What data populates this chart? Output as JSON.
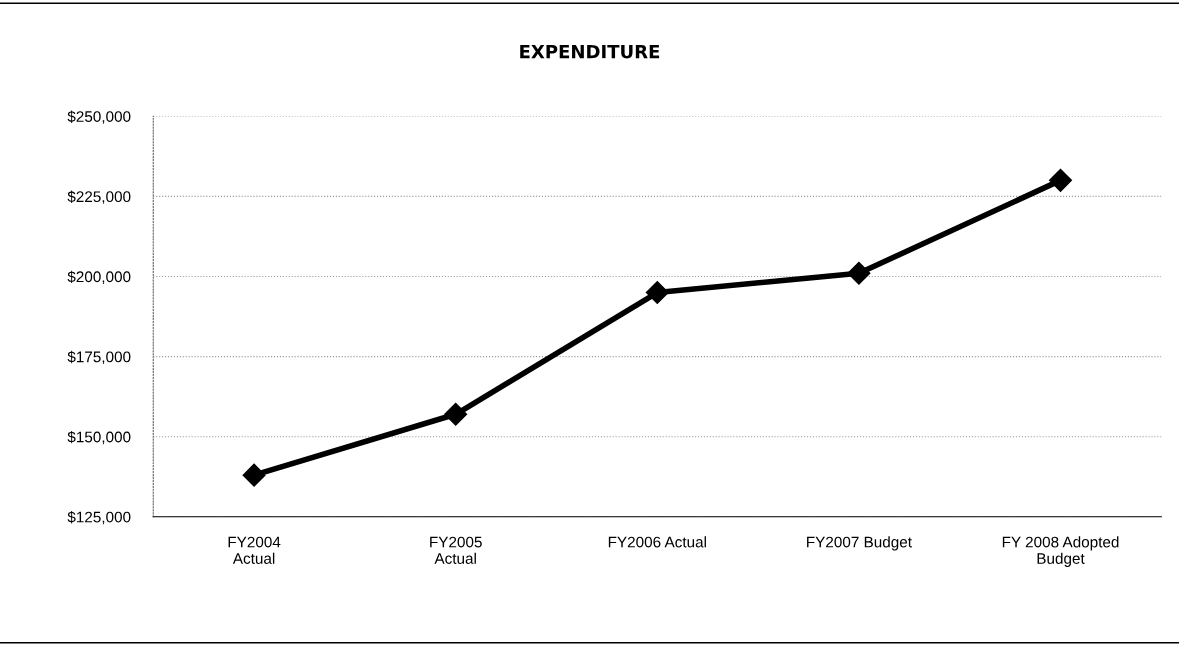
{
  "chart_data": {
    "type": "line",
    "title": "EXPENDITURE",
    "categories": [
      "FY2004\nActual",
      "FY2005\nActual",
      "FY2006 Actual",
      "FY2007 Budget",
      "FY 2008 Adopted\nBudget"
    ],
    "series": [
      {
        "color": "#000000",
        "values": [
          138000,
          157000,
          195000,
          201000,
          230000
        ]
      }
    ],
    "ylim": [
      125000,
      250000
    ],
    "yticks": [
      {
        "value": 125000,
        "label": "$125,000"
      },
      {
        "value": 150000,
        "label": "$150,000"
      },
      {
        "value": 175000,
        "label": "$175,000"
      },
      {
        "value": 200000,
        "label": "$200,000"
      },
      {
        "value": 225000,
        "label": "$225,000"
      },
      {
        "value": 250000,
        "label": "$250,000"
      }
    ],
    "grid": "y",
    "marker": "diamond",
    "line_style": "solid",
    "legend": false
  }
}
